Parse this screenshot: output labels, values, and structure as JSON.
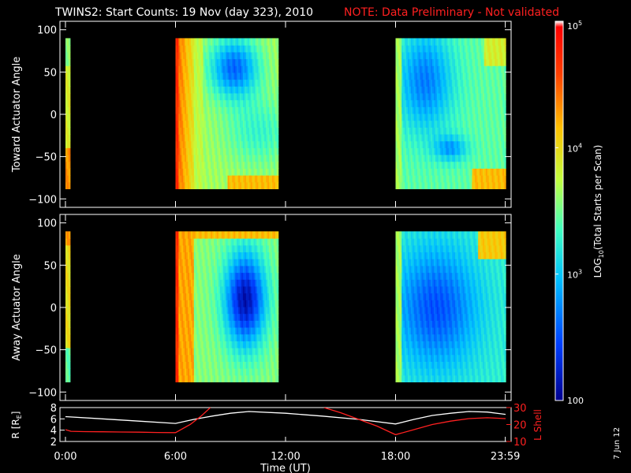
{
  "title": "TWINS2: Start Counts: 19 Nov (day 323), 2010",
  "note": "NOTE: Data Preliminary - Not validated",
  "stamp": "7 Jun 12",
  "chart_data": [
    {
      "type": "heatmap",
      "panel": "toward",
      "ylabel": "Toward Actuator Angle",
      "ylim": [
        -110,
        110
      ],
      "yticks": [
        100,
        50,
        0,
        -50,
        -100
      ],
      "ytick_labels": [
        "100",
        "50",
        "0",
        "−50",
        "−100"
      ],
      "data_yrange": [
        -88,
        90
      ],
      "coverage_hours": [
        [
          0,
          0.25
        ],
        [
          6.0,
          11.6
        ],
        [
          18.0,
          24.0
        ]
      ],
      "features": "High counts (red/orange) near 6:00 UT; low counts (blue) 8-11 UT around +40 to +80 deg and 19-22 UT; orange bands near -80 deg after 9:00 UT and after 22:00 UT"
    },
    {
      "type": "heatmap",
      "panel": "away",
      "ylabel": "Away Actuator Angle",
      "ylim": [
        -110,
        110
      ],
      "yticks": [
        100,
        50,
        0,
        -50,
        -100
      ],
      "ytick_labels": [
        "100",
        "50",
        "0",
        "−50",
        "−100"
      ],
      "data_yrange": [
        -88,
        90
      ],
      "coverage_hours": [
        [
          0,
          0.25
        ],
        [
          6.0,
          11.6
        ],
        [
          18.0,
          24.0
        ]
      ],
      "features": "Deep blue minimum 9-11 UT centered near +20 deg; orange near +90 deg; red stripes near 6:00 UT"
    },
    {
      "type": "line",
      "panel": "orbit",
      "xlabel": "Time (UT)",
      "xticks": [
        0,
        6,
        12,
        18,
        23.983
      ],
      "xtick_labels": [
        "0:00",
        "6:00",
        "12:00",
        "18:00",
        "23:59"
      ],
      "xlim": [
        -0.3,
        24.3
      ],
      "ylabel_left": "R [R",
      "ylabel_left_sub": "E",
      "ylabel_left_end": "]",
      "ylim_left": [
        2,
        8
      ],
      "yticks_left": [
        2,
        4,
        6,
        8
      ],
      "ytick_labels_left": [
        "2",
        "4",
        "6",
        "8"
      ],
      "ylabel_right": "L Shell",
      "ylim_right": [
        10,
        30
      ],
      "yticks_right": [
        10,
        20,
        30
      ],
      "ytick_labels_right": [
        "10",
        "20",
        "30"
      ],
      "series": [
        {
          "color": "#ffffff",
          "axis": "left",
          "x": [
            0,
            2,
            4,
            6,
            7,
            8,
            9,
            10,
            12,
            14,
            16,
            18,
            19,
            20,
            21,
            22,
            23,
            24
          ],
          "y": [
            6.4,
            6.0,
            5.6,
            5.2,
            5.9,
            6.5,
            7.0,
            7.3,
            7.0,
            6.5,
            5.9,
            5.1,
            5.9,
            6.6,
            7.0,
            7.3,
            7.2,
            6.8
          ]
        },
        {
          "color": "#ff2020",
          "axis": "right",
          "x": [
            0,
            0.3,
            1,
            2,
            3,
            4,
            5,
            6,
            6.8,
            7.4,
            7.9
          ],
          "y": [
            17,
            16,
            15.8,
            15.7,
            15.6,
            15.5,
            15.3,
            15.2,
            20,
            25,
            30
          ]
        },
        {
          "color": "#ff2020",
          "axis": "right",
          "x": [
            14.1,
            15,
            16,
            17,
            18,
            19,
            20,
            21,
            22,
            23,
            24
          ],
          "y": [
            30,
            27,
            23,
            19,
            14,
            17,
            20,
            22,
            23.5,
            24,
            23.5
          ]
        }
      ]
    },
    {
      "type": "colorbar",
      "label_prefix": "LOG",
      "label_sub": "10",
      "label_suffix": "(Total Starts per Scan)",
      "range": [
        100,
        100000
      ],
      "scale": "log",
      "tick_labels": [
        {
          "base": "10",
          "exp": "5",
          "value": 100000
        },
        {
          "base": "10",
          "exp": "4",
          "value": 10000
        },
        {
          "base": "10",
          "exp": "3",
          "value": 1000
        },
        {
          "base": "100",
          "exp": "",
          "value": 100
        }
      ],
      "colors": [
        "#00008f",
        "#0040ff",
        "#00c0ff",
        "#40ffc0",
        "#c0ff40",
        "#ffc000",
        "#ff4000",
        "#ff0000",
        "#ffffff"
      ]
    }
  ]
}
